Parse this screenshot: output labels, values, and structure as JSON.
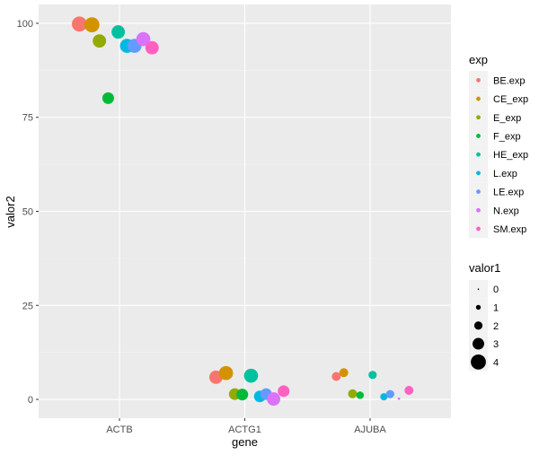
{
  "chart_data": {
    "type": "scatter",
    "xlabel": "gene",
    "ylabel": "valor2",
    "categories": [
      "ACTB",
      "ACTG1",
      "AJUBA"
    ],
    "ylim": [
      -5,
      105
    ],
    "y_ticks": [
      0,
      25,
      50,
      75,
      100
    ],
    "grid": true,
    "color_legend": {
      "title": "exp",
      "placement": "right",
      "entries": [
        {
          "label": "BE.exp",
          "color": "#F8766D"
        },
        {
          "label": "CE_exp",
          "color": "#D39200"
        },
        {
          "label": "E_exp",
          "color": "#93AA00"
        },
        {
          "label": "F_exp",
          "color": "#00BA38"
        },
        {
          "label": "HE_exp",
          "color": "#00C19F"
        },
        {
          "label": "L.exp",
          "color": "#00B9E3"
        },
        {
          "label": "LE.exp",
          "color": "#619CFF"
        },
        {
          "label": "N.exp",
          "color": "#DB72FB"
        },
        {
          "label": "SM.exp",
          "color": "#FF61C3"
        }
      ]
    },
    "size_legend": {
      "title": "valor1",
      "placement": "right",
      "values": [
        0,
        1,
        2,
        3,
        4
      ]
    },
    "points": [
      {
        "gene": "ACTB",
        "exp": "BE.exp",
        "jitter": -0.32,
        "y": 99.8,
        "size": 4.0
      },
      {
        "gene": "ACTB",
        "exp": "CE_exp",
        "jitter": -0.22,
        "y": 99.6,
        "size": 4.0
      },
      {
        "gene": "ACTB",
        "exp": "E_exp",
        "jitter": -0.16,
        "y": 95.3,
        "size": 3.5
      },
      {
        "gene": "ACTB",
        "exp": "F_exp",
        "jitter": -0.09,
        "y": 80.1,
        "size": 3.0
      },
      {
        "gene": "ACTB",
        "exp": "HE_exp",
        "jitter": -0.01,
        "y": 97.7,
        "size": 3.5
      },
      {
        "gene": "ACTB",
        "exp": "L.exp",
        "jitter": 0.06,
        "y": 94.0,
        "size": 3.7
      },
      {
        "gene": "ACTB",
        "exp": "LE.exp",
        "jitter": 0.12,
        "y": 94.0,
        "size": 3.7
      },
      {
        "gene": "ACTB",
        "exp": "N.exp",
        "jitter": 0.19,
        "y": 95.8,
        "size": 3.7
      },
      {
        "gene": "ACTB",
        "exp": "SM.exp",
        "jitter": 0.26,
        "y": 93.5,
        "size": 3.5
      },
      {
        "gene": "ACTG1",
        "exp": "BE.exp",
        "jitter": -0.23,
        "y": 5.9,
        "size": 3.5
      },
      {
        "gene": "ACTG1",
        "exp": "CE_exp",
        "jitter": -0.15,
        "y": 7.0,
        "size": 3.7
      },
      {
        "gene": "ACTG1",
        "exp": "E_exp",
        "jitter": -0.08,
        "y": 1.4,
        "size": 3.0
      },
      {
        "gene": "ACTG1",
        "exp": "F_exp",
        "jitter": -0.02,
        "y": 1.3,
        "size": 3.0
      },
      {
        "gene": "ACTG1",
        "exp": "HE_exp",
        "jitter": 0.05,
        "y": 6.3,
        "size": 3.7
      },
      {
        "gene": "ACTG1",
        "exp": "L.exp",
        "jitter": 0.12,
        "y": 0.8,
        "size": 3.0
      },
      {
        "gene": "ACTG1",
        "exp": "LE.exp",
        "jitter": 0.17,
        "y": 1.4,
        "size": 3.0
      },
      {
        "gene": "ACTG1",
        "exp": "N.exp",
        "jitter": 0.23,
        "y": 0.1,
        "size": 3.5
      },
      {
        "gene": "ACTG1",
        "exp": "SM.exp",
        "jitter": 0.31,
        "y": 2.2,
        "size": 3.0
      },
      {
        "gene": "AJUBA",
        "exp": "BE.exp",
        "jitter": -0.27,
        "y": 6.1,
        "size": 2.2
      },
      {
        "gene": "AJUBA",
        "exp": "CE_exp",
        "jitter": -0.21,
        "y": 7.1,
        "size": 2.2
      },
      {
        "gene": "AJUBA",
        "exp": "E_exp",
        "jitter": -0.14,
        "y": 1.5,
        "size": 2.2
      },
      {
        "gene": "AJUBA",
        "exp": "F_exp",
        "jitter": -0.08,
        "y": 1.1,
        "size": 1.8
      },
      {
        "gene": "AJUBA",
        "exp": "HE_exp",
        "jitter": 0.02,
        "y": 6.5,
        "size": 2.0
      },
      {
        "gene": "AJUBA",
        "exp": "L.exp",
        "jitter": 0.11,
        "y": 0.7,
        "size": 1.7
      },
      {
        "gene": "AJUBA",
        "exp": "LE.exp",
        "jitter": 0.16,
        "y": 1.4,
        "size": 2.0
      },
      {
        "gene": "AJUBA",
        "exp": "N.exp",
        "jitter": 0.23,
        "y": 0.2,
        "size": 0.3
      },
      {
        "gene": "AJUBA",
        "exp": "SM.exp",
        "jitter": 0.31,
        "y": 2.4,
        "size": 2.2
      }
    ]
  }
}
